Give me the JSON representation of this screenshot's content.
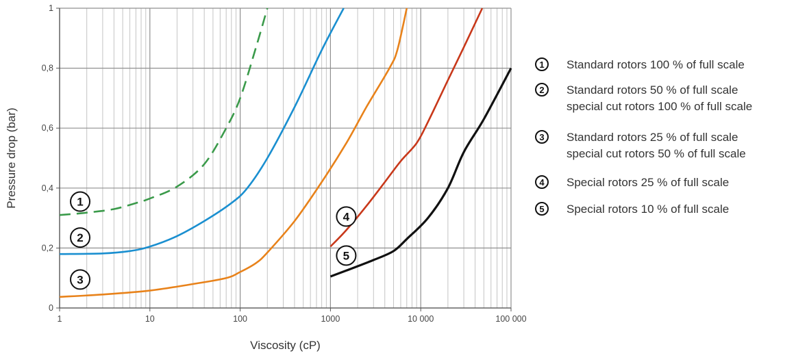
{
  "chart_data": {
    "type": "line",
    "xlabel": "Viscosity (cP)",
    "ylabel": "Pressure drop (bar)",
    "x_scale": "log",
    "xlim": [
      1,
      100000
    ],
    "ylim": [
      0,
      1
    ],
    "grid": true,
    "x_ticks": [
      {
        "value": 1,
        "label": "1"
      },
      {
        "value": 10,
        "label": "10"
      },
      {
        "value": 100,
        "label": "100"
      },
      {
        "value": 1000,
        "label": "1000"
      },
      {
        "value": 10000,
        "label": "10 000"
      },
      {
        "value": 100000,
        "label": "100 000"
      }
    ],
    "y_ticks": [
      {
        "value": 0,
        "label": "0"
      },
      {
        "value": 0.2,
        "label": "0,2"
      },
      {
        "value": 0.4,
        "label": "0,4"
      },
      {
        "value": 0.6,
        "label": "0,6"
      },
      {
        "value": 0.8,
        "label": "0,8"
      },
      {
        "value": 1,
        "label": "1"
      }
    ],
    "series": [
      {
        "marker": "1",
        "color": "#3a9a4a",
        "dashed": true,
        "label_at": [
          1.3,
          0.355
        ],
        "points": [
          [
            1,
            0.31
          ],
          [
            2,
            0.318
          ],
          [
            4,
            0.33
          ],
          [
            7,
            0.35
          ],
          [
            10,
            0.365
          ],
          [
            20,
            0.405
          ],
          [
            40,
            0.48
          ],
          [
            70,
            0.6
          ],
          [
            100,
            0.7
          ],
          [
            150,
            0.87
          ],
          [
            200,
            1.0
          ]
        ]
      },
      {
        "marker": "2",
        "color": "#1a8fd0",
        "dashed": false,
        "label_at": [
          1.3,
          0.235
        ],
        "points": [
          [
            1,
            0.18
          ],
          [
            3,
            0.182
          ],
          [
            6,
            0.19
          ],
          [
            10,
            0.205
          ],
          [
            20,
            0.24
          ],
          [
            40,
            0.29
          ],
          [
            80,
            0.35
          ],
          [
            120,
            0.4
          ],
          [
            200,
            0.5
          ],
          [
            400,
            0.67
          ],
          [
            800,
            0.86
          ],
          [
            1400,
            1.0
          ]
        ]
      },
      {
        "marker": "3",
        "color": "#e8821a",
        "dashed": false,
        "label_at": [
          1.3,
          0.095
        ],
        "points": [
          [
            1,
            0.037
          ],
          [
            3,
            0.045
          ],
          [
            10,
            0.058
          ],
          [
            30,
            0.08
          ],
          [
            70,
            0.1
          ],
          [
            100,
            0.12
          ],
          [
            150,
            0.15
          ],
          [
            200,
            0.185
          ],
          [
            400,
            0.29
          ],
          [
            800,
            0.42
          ],
          [
            1500,
            0.55
          ],
          [
            2500,
            0.67
          ],
          [
            4500,
            0.8
          ],
          [
            5500,
            0.86
          ],
          [
            7000,
            1.0
          ]
        ]
      },
      {
        "marker": "4",
        "color": "#c8381a",
        "dashed": false,
        "label_at": [
          1150,
          0.305
        ],
        "points": [
          [
            1000,
            0.205
          ],
          [
            1500,
            0.26
          ],
          [
            2500,
            0.34
          ],
          [
            4000,
            0.42
          ],
          [
            6000,
            0.49
          ],
          [
            9000,
            0.55
          ],
          [
            12000,
            0.62
          ],
          [
            20000,
            0.76
          ],
          [
            30000,
            0.87
          ],
          [
            48000,
            1.0
          ]
        ]
      },
      {
        "marker": "5",
        "color": "#111111",
        "dashed": false,
        "label_at": [
          1150,
          0.175
        ],
        "points": [
          [
            1000,
            0.105
          ],
          [
            1500,
            0.125
          ],
          [
            3000,
            0.16
          ],
          [
            5000,
            0.19
          ],
          [
            7000,
            0.23
          ],
          [
            12000,
            0.3
          ],
          [
            20000,
            0.4
          ],
          [
            30000,
            0.52
          ],
          [
            50000,
            0.63
          ],
          [
            100000,
            0.8
          ]
        ]
      }
    ]
  },
  "legend": [
    {
      "marker": "1",
      "lines": [
        "Standard rotors 100 % of full scale"
      ]
    },
    {
      "marker": "2",
      "lines": [
        "Standard rotors 50 % of full scale",
        "special cut rotors 100 % of full scale"
      ]
    },
    {
      "marker": "3",
      "lines": [
        "Standard rotors 25 % of full scale",
        "special cut rotors 50 % of full scale"
      ]
    },
    {
      "marker": "4",
      "lines": [
        "Special rotors 25 % of full scale"
      ]
    },
    {
      "marker": "5",
      "lines": [
        "Special rotors 10 % of full scale"
      ]
    }
  ]
}
